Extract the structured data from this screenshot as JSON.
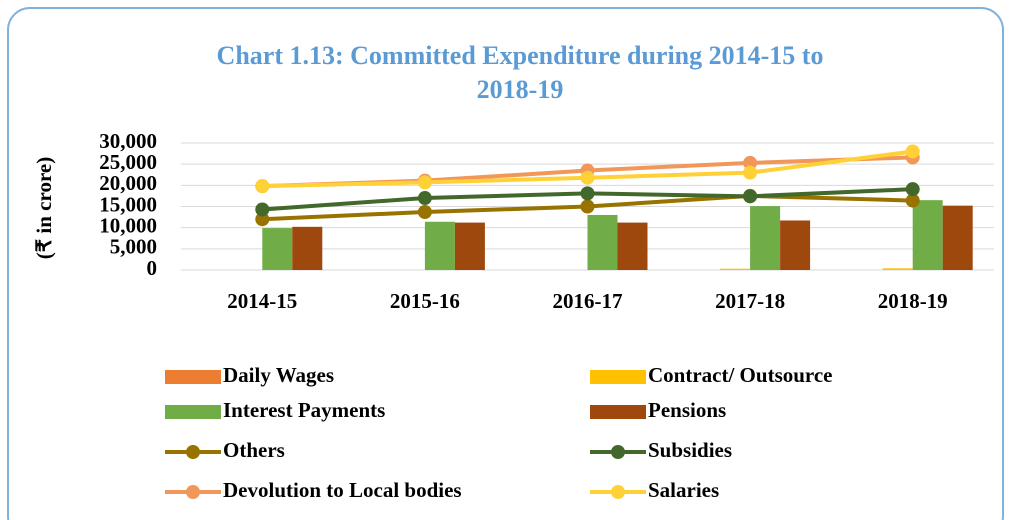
{
  "chart_data": {
    "type": "bar",
    "title": [
      "Chart 1.13: Committed Expenditure during 2014-15 to",
      "2018-19"
    ],
    "y_label": "(₹ in crore)",
    "categories": [
      "2014-15",
      "2015-16",
      "2016-17",
      "2017-18",
      "2018-19"
    ],
    "ylim": [
      0,
      30000
    ],
    "yticks": [
      0,
      {
        "value": 5000,
        "label": "5,000"
      },
      {
        "value": 10000,
        "label": "10,000"
      },
      {
        "value": 15000,
        "label": "15,000"
      },
      {
        "value": 20000,
        "label": "20,000"
      },
      {
        "value": 25000,
        "label": "25,000"
      },
      {
        "value": 30000,
        "label": "30,000"
      }
    ],
    "grid": true,
    "series": [
      {
        "name": "Daily Wages",
        "type": "bar",
        "color": "#ed7d31",
        "values": [
          0,
          0,
          0,
          0,
          0
        ]
      },
      {
        "name": "Contract/ Outsource",
        "type": "bar",
        "color": "#ffc000",
        "values": [
          0,
          0,
          0,
          300,
          400
        ]
      },
      {
        "name": "Interest Payments",
        "type": "bar",
        "color": "#70ad47",
        "values": [
          9900,
          11400,
          13000,
          15100,
          16500
        ]
      },
      {
        "name": "Pensions",
        "type": "bar",
        "color": "#9e480e",
        "values": [
          10200,
          11200,
          11200,
          11700,
          15200
        ]
      },
      {
        "name": "Others",
        "type": "line",
        "color": "#997300",
        "values": [
          12000,
          13700,
          15000,
          17500,
          16400
        ]
      },
      {
        "name": "Subsidies",
        "type": "line",
        "color": "#43682b",
        "values": [
          14300,
          17000,
          18100,
          17400,
          19100
        ]
      },
      {
        "name": "Devolution to Local bodies",
        "type": "line",
        "color": "#f1975a",
        "values": [
          19800,
          21100,
          23500,
          25300,
          26600
        ]
      },
      {
        "name": "Salaries",
        "type": "line",
        "color": "#ffd136",
        "values": [
          19800,
          20700,
          21800,
          23000,
          28000
        ]
      }
    ]
  }
}
